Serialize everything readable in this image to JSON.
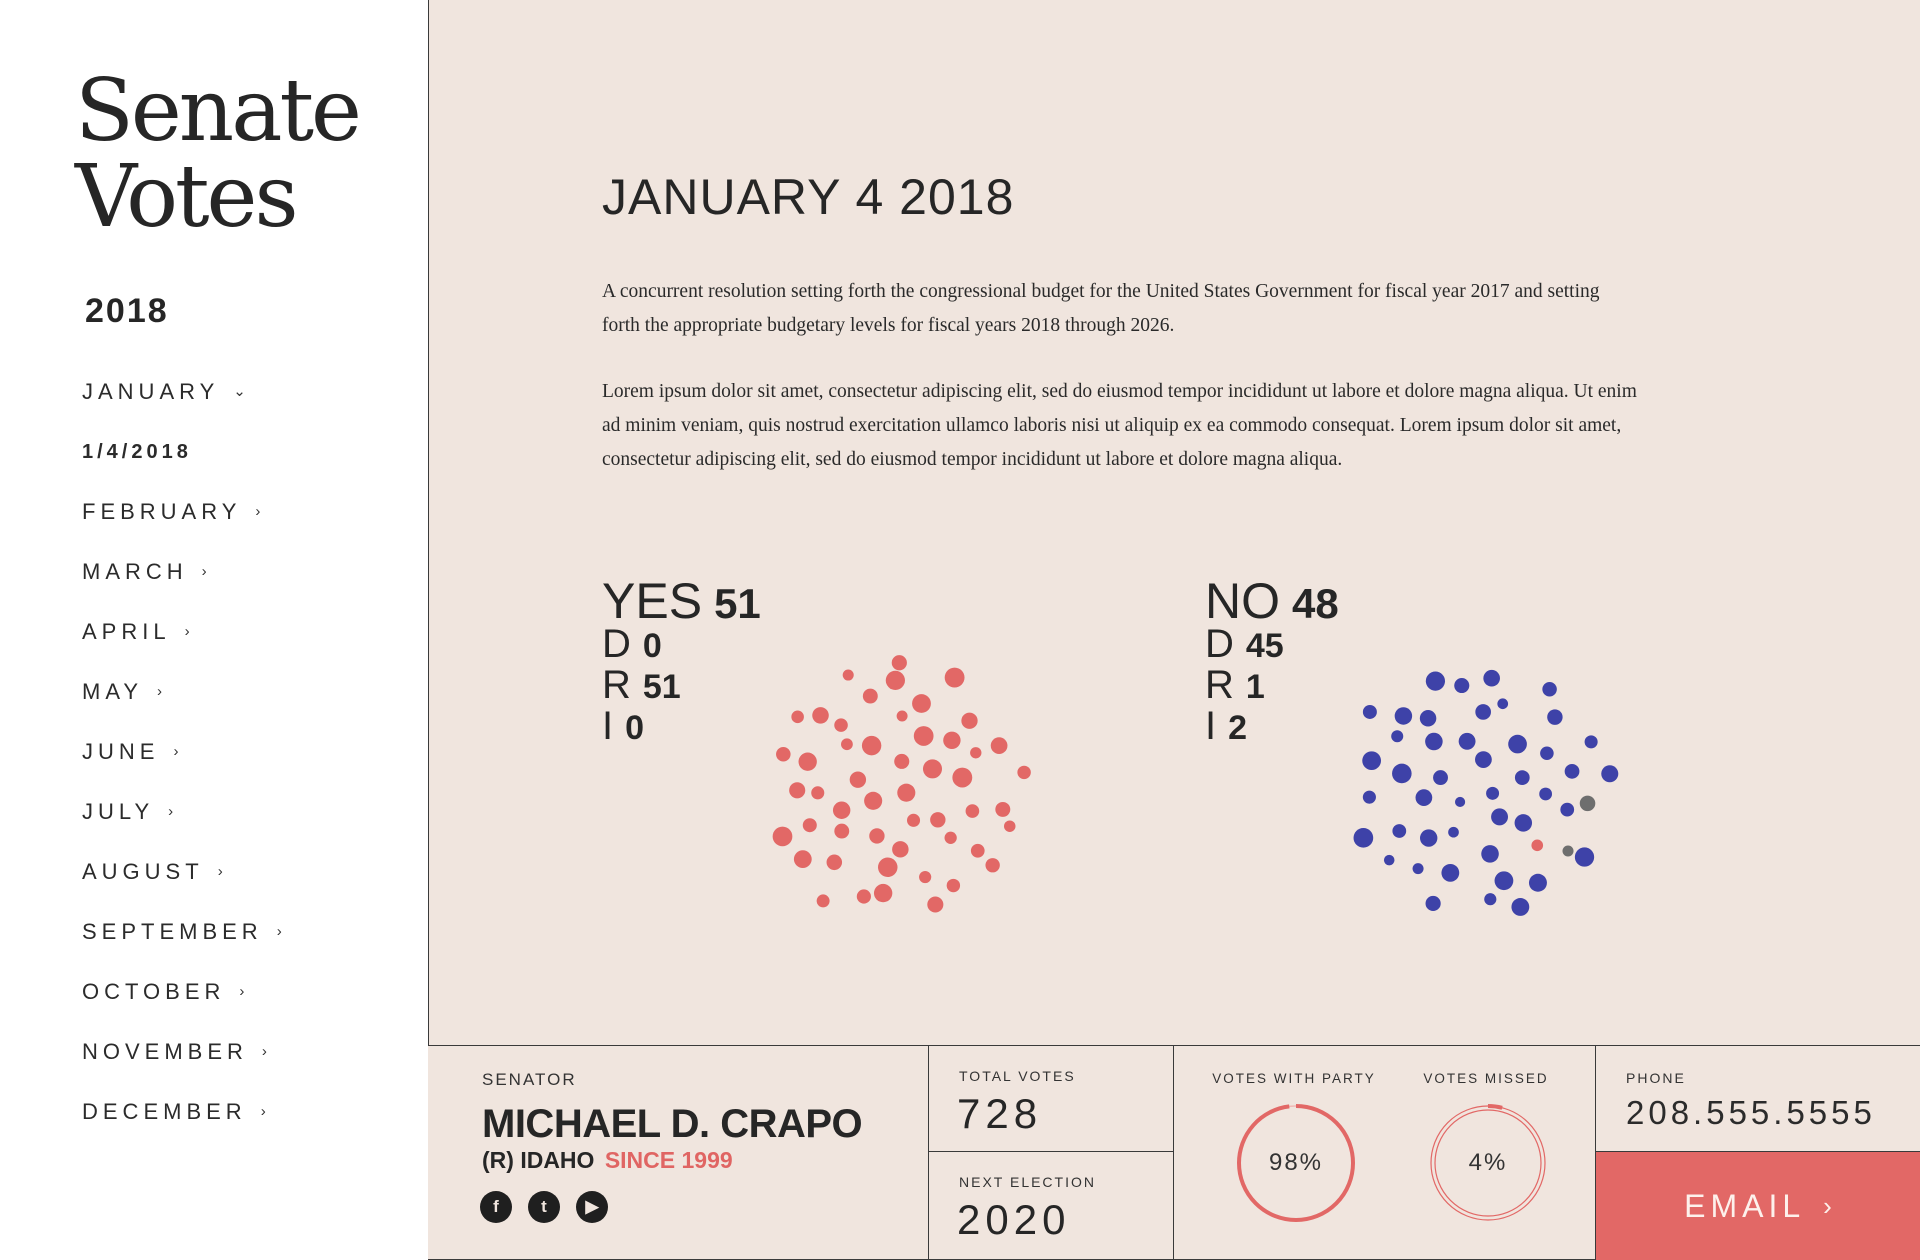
{
  "sidebar": {
    "title_line1": "Senate",
    "title_line2": "Votes",
    "year": "2018",
    "months": [
      {
        "label": "JANUARY",
        "chevron": "⌄"
      },
      {
        "label": "1/4/2018",
        "chevron": ""
      },
      {
        "label": "FEBRUARY",
        "chevron": "›"
      },
      {
        "label": "MARCH",
        "chevron": "›"
      },
      {
        "label": "APRIL",
        "chevron": "›"
      },
      {
        "label": "MAY",
        "chevron": "›"
      },
      {
        "label": "JUNE",
        "chevron": "›"
      },
      {
        "label": "JULY",
        "chevron": "›"
      },
      {
        "label": "AUGUST",
        "chevron": "›"
      },
      {
        "label": "SEPTEMBER",
        "chevron": "›"
      },
      {
        "label": "OCTOBER",
        "chevron": "›"
      },
      {
        "label": "NOVEMBER",
        "chevron": "›"
      },
      {
        "label": "DECEMBER",
        "chevron": "›"
      }
    ]
  },
  "vote": {
    "date": "JANUARY 4 2018",
    "description": "A concurrent resolution setting forth the congressional budget for the United States Government for fiscal year 2017 and setting forth the appropriate budgetary levels for fiscal years 2018 through 2026.",
    "body": "Lorem ipsum dolor sit amet, consectetur adipiscing elit, sed do eiusmod tempor incididunt ut labore et dolore magna aliqua. Ut enim ad minim veniam, quis nostrud exercitation ullamco laboris nisi ut aliquip ex ea commodo consequat. Lorem ipsum dolor sit amet, consectetur adipiscing elit, sed do eiusmod tempor incididunt ut labore et dolore magna aliqua.",
    "yes": {
      "label": "YES",
      "total": "51",
      "d_label": "D",
      "d": "0",
      "r_label": "R",
      "r": "51",
      "i_label": "I",
      "i": "0"
    },
    "no": {
      "label": "NO",
      "total": "48",
      "d_label": "D",
      "d": "45",
      "r_label": "R",
      "r": "1",
      "i_label": "I",
      "i": "2"
    }
  },
  "colors": {
    "republican": "#e26866",
    "democrat": "#3e42a8",
    "independent": "#6e6e6e",
    "background": "#f0e5de"
  },
  "senator": {
    "label": "SENATOR",
    "name": "MICHAEL D. CRAPO",
    "party_state": "(R) IDAHO",
    "since": "SINCE 1999",
    "socials": [
      {
        "icon": "facebook-icon",
        "glyph": "f"
      },
      {
        "icon": "twitter-icon",
        "glyph": "t"
      },
      {
        "icon": "youtube-icon",
        "glyph": "▶"
      }
    ]
  },
  "stats": {
    "total_votes_label": "TOTAL VOTES",
    "total_votes": "728",
    "next_election_label": "NEXT ELECTION",
    "next_election": "2020",
    "votes_with_party_label": "VOTES WITH PARTY",
    "votes_with_party": "98%",
    "votes_with_party_value": 0.98,
    "votes_missed_label": "VOTES MISSED",
    "votes_missed": "4%",
    "votes_missed_value": 0.04
  },
  "contact": {
    "phone_label": "PHONE",
    "phone": "208.555.5555",
    "email_label": "EMAIL",
    "email_chevron": "›"
  }
}
